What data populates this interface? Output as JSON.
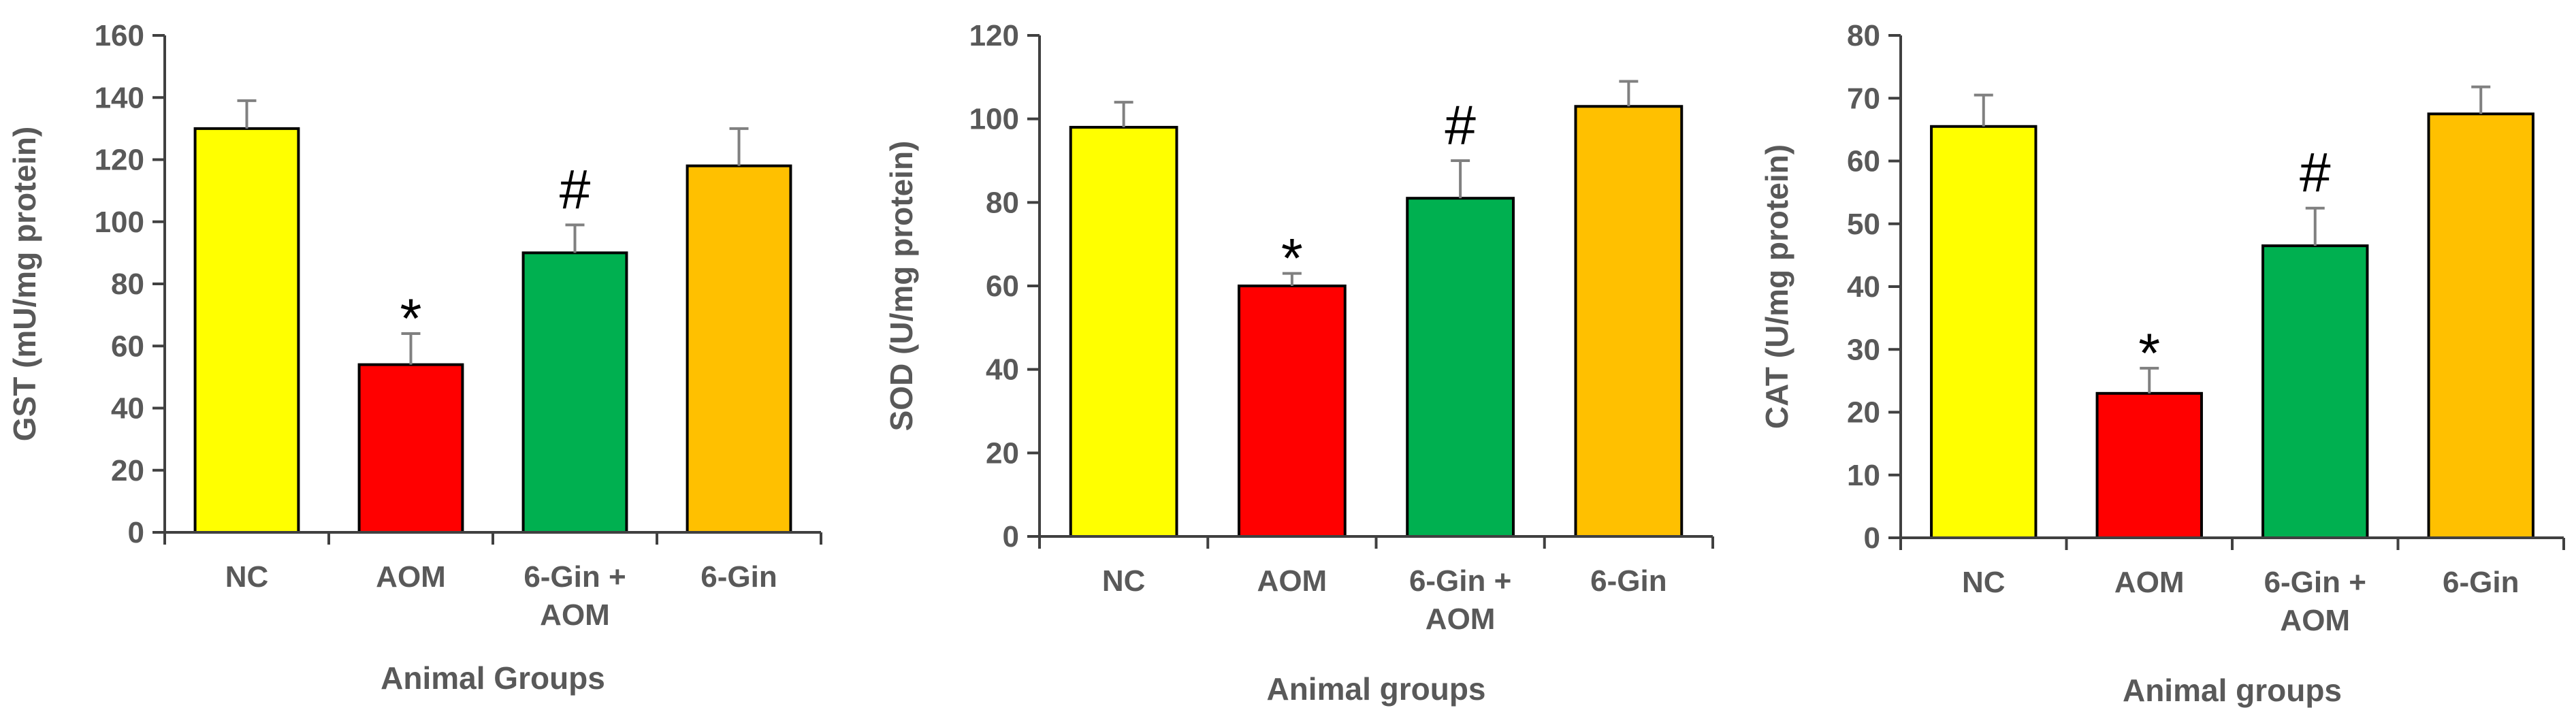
{
  "chart_data": [
    {
      "type": "bar",
      "categories": [
        [
          "NC"
        ],
        [
          "AOM"
        ],
        [
          "6-Gin +",
          "AOM"
        ],
        [
          "6-Gin"
        ]
      ],
      "values": [
        130,
        54,
        90,
        118
      ],
      "errors": [
        9,
        10,
        9,
        12
      ],
      "annotations": [
        "",
        "*",
        "#",
        ""
      ],
      "colors": [
        "#FFFF00",
        "#FF0000",
        "#00B050",
        "#FFC000"
      ],
      "ylabel": "GST (mU/mg protein)",
      "xlabel": "Animal Groups",
      "ylim": [
        0,
        160
      ],
      "ytick_step": 20
    },
    {
      "type": "bar",
      "categories": [
        [
          "NC"
        ],
        [
          "AOM"
        ],
        [
          "6-Gin +",
          "AOM"
        ],
        [
          "6-Gin"
        ]
      ],
      "values": [
        98,
        60,
        81,
        103
      ],
      "errors": [
        6,
        3,
        9,
        6
      ],
      "annotations": [
        "",
        "*",
        "#",
        ""
      ],
      "colors": [
        "#FFFF00",
        "#FF0000",
        "#00B050",
        "#FFC000"
      ],
      "ylabel": "SOD (U/mg protein)",
      "xlabel": "Animal groups",
      "ylim": [
        0,
        120
      ],
      "ytick_step": 20
    },
    {
      "type": "bar",
      "categories": [
        [
          "NC"
        ],
        [
          "AOM"
        ],
        [
          "6-Gin +",
          "AOM"
        ],
        [
          "6-Gin"
        ]
      ],
      "values": [
        65.5,
        23,
        46.5,
        67.5
      ],
      "errors": [
        5,
        4,
        6,
        4.3
      ],
      "annotations": [
        "",
        "*",
        "#",
        ""
      ],
      "colors": [
        "#FFFF00",
        "#FF0000",
        "#00B050",
        "#FFC000"
      ],
      "ylabel": "CAT (U/mg protein)",
      "xlabel": "Animal groups",
      "ylim": [
        0,
        80
      ],
      "ytick_step": 10
    }
  ]
}
